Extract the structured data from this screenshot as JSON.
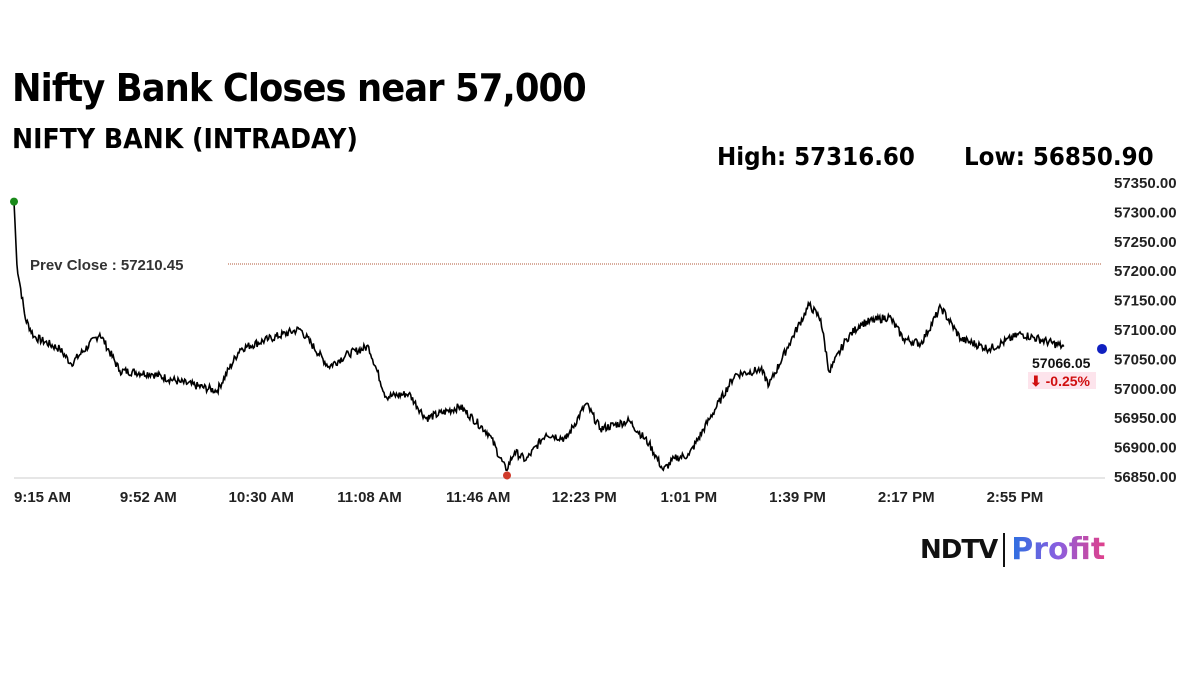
{
  "header": {
    "title": "Nifty Bank Closes near 57,000",
    "subtitle": "NIFTY BANK (INTRADAY)",
    "high": "High: 57316.60",
    "low": "Low: 56850.90"
  },
  "logo": {
    "ndtv": "NDTV",
    "profit": "Profit"
  },
  "chart_data": {
    "type": "line",
    "title": "NIFTY BANK (INTRADAY)",
    "xlabel": "",
    "ylabel": "",
    "ylim": [
      56850,
      57350
    ],
    "y_ticks": [
      "57350.00",
      "57300.00",
      "57250.00",
      "57200.00",
      "57150.00",
      "57100.00",
      "57050.00",
      "57000.00",
      "56950.00",
      "56900.00",
      "56850.00"
    ],
    "x_ticks": [
      "9:15 AM",
      "9:52 AM",
      "10:30 AM",
      "11:08 AM",
      "11:46 AM",
      "12:23 PM",
      "1:01 PM",
      "1:39 PM",
      "2:17 PM",
      "2:55 PM"
    ],
    "x_tick_minutes": [
      0,
      37,
      75,
      113,
      151,
      188,
      226,
      264,
      302,
      340
    ],
    "prev_close_label": "Prev Close : 57210.45",
    "prev_close": 57210.45,
    "last_value": "57066.05",
    "change": "-0.25%",
    "change_arrow": "⬇",
    "colors": {
      "line": "#000000",
      "prev_close": "#b05a3a",
      "high_marker": "#1a8a1a",
      "low_marker": "#d03a2a",
      "last_marker": "#1020c0",
      "change": "#d01010"
    },
    "series_minutes": [
      0,
      1,
      4,
      7,
      16,
      20,
      30,
      37,
      48,
      58,
      71,
      79,
      89,
      100,
      110,
      117,
      124,
      130,
      138,
      144,
      156,
      166,
      172,
      175,
      179,
      186,
      193,
      200,
      205,
      215,
      222,
      227,
      231,
      236,
      243,
      252,
      261,
      264,
      271,
      278,
      282,
      285,
      291,
      296,
      306,
      311,
      317,
      324,
      331,
      341,
      352,
      367
    ],
    "series_values": [
      57316,
      57210,
      57117,
      57087,
      57066,
      57041,
      57092,
      57029,
      57024,
      57010,
      56995,
      57066,
      57083,
      57100,
      57036,
      57058,
      57070,
      56985,
      56990,
      56948,
      56968,
      56922,
      56860,
      56891,
      56877,
      56922,
      56913,
      56973,
      56930,
      56944,
      56905,
      56860,
      56880,
      56886,
      56946,
      57022,
      57031,
      57005,
      57075,
      57141,
      57117,
      57027,
      57083,
      57109,
      57121,
      57083,
      57075,
      57137,
      57083,
      57066,
      57092,
      57070
    ]
  }
}
